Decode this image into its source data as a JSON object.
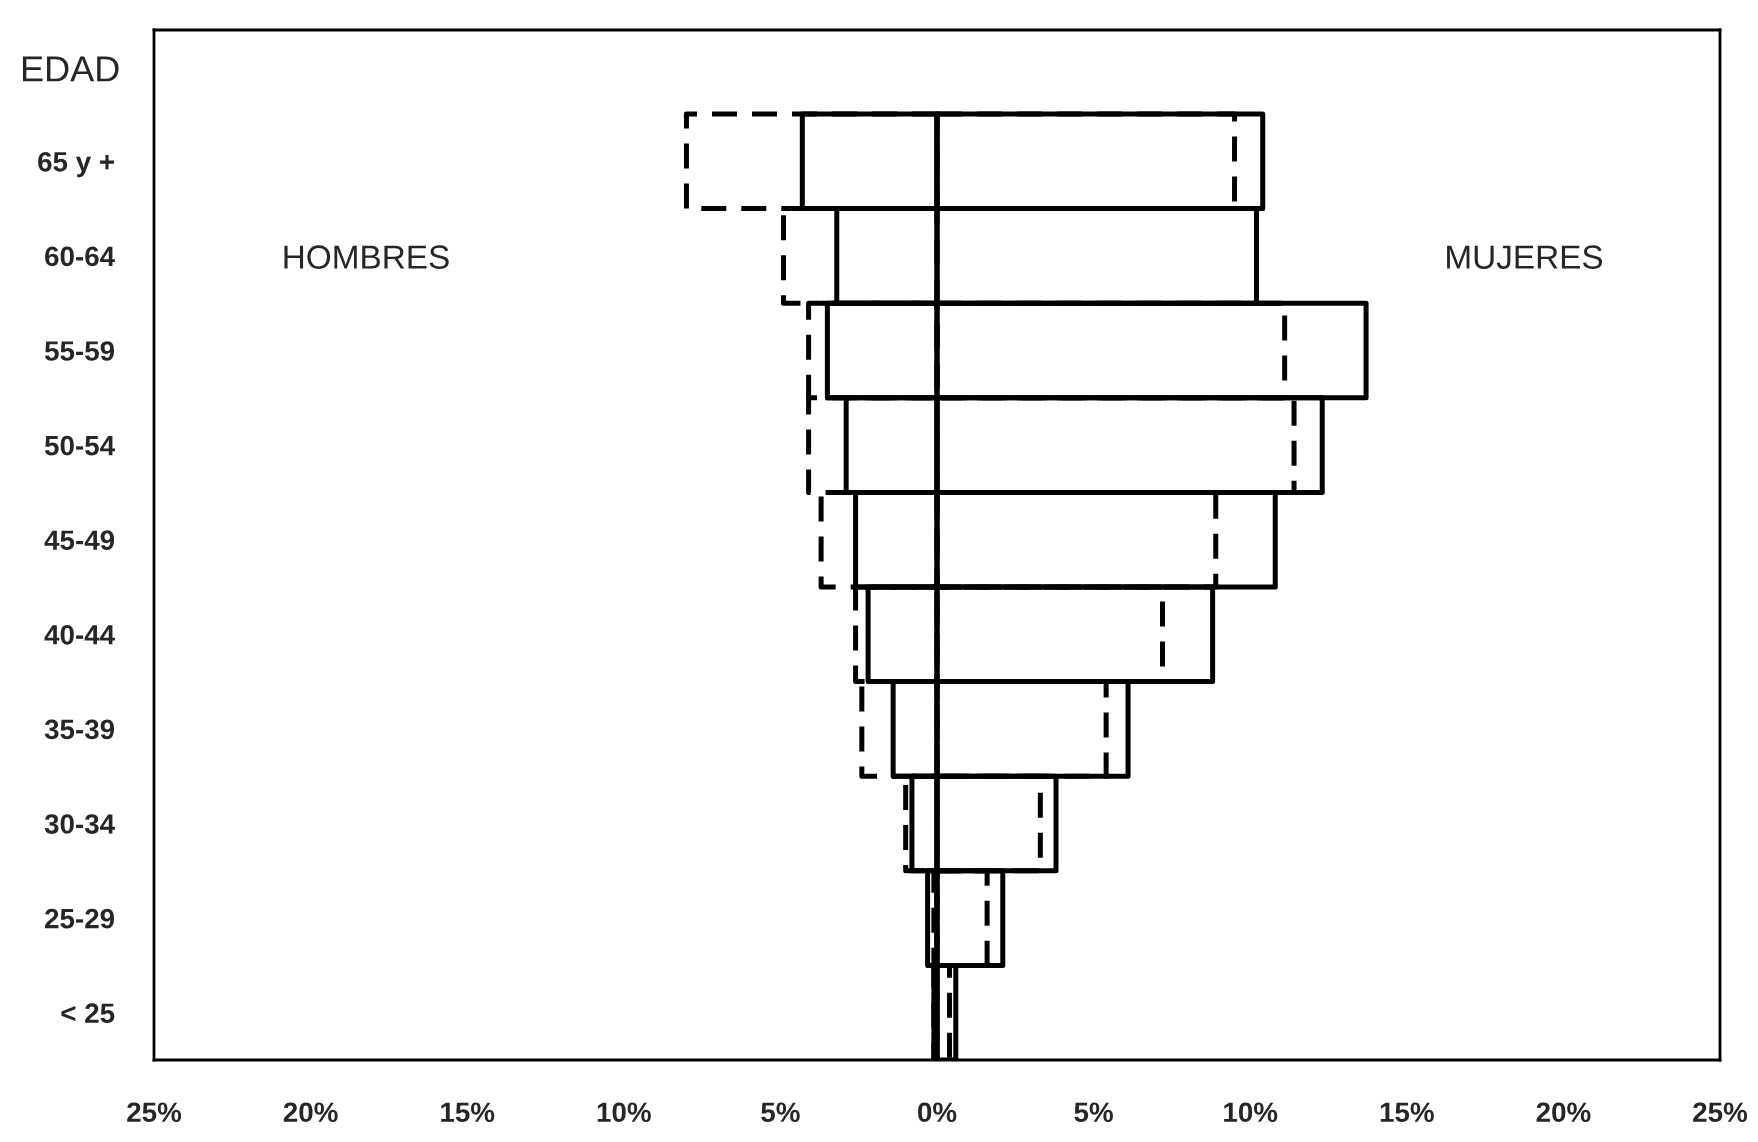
{
  "chart_data": {
    "type": "bar",
    "orientation": "horizontal",
    "ylabel": "EDAD",
    "categories": [
      "65 y +",
      "60-64",
      "55-59",
      "50-54",
      "45-49",
      "40-44",
      "35-39",
      "30-34",
      "25-29",
      "< 25"
    ],
    "series": [
      {
        "color": "#000000",
        "line_style": "dashed",
        "values": [
          -8.0,
          -4.9,
          -4.1,
          -4.1,
          -3.7,
          -2.6,
          -2.4,
          -1.0,
          -0.1,
          -0.1
        ]
      },
      {
        "color": "#000000",
        "line_style": "solid",
        "values": [
          -4.3,
          -3.2,
          -3.5,
          -2.9,
          -2.6,
          -2.2,
          -1.4,
          -0.8,
          -0.3,
          -0.1
        ]
      },
      {
        "color": "#000000",
        "line_style": "dashed",
        "values": [
          9.5,
          null,
          11.1,
          11.4,
          8.9,
          7.2,
          5.4,
          3.3,
          1.6,
          0.4
        ]
      },
      {
        "color": "#000000",
        "line_style": "solid",
        "values": [
          10.4,
          10.2,
          13.7,
          12.3,
          10.8,
          8.8,
          6.1,
          3.8,
          2.1,
          0.6
        ]
      }
    ],
    "xlim": [
      -25,
      25
    ],
    "xticks": [
      {
        "value": -25,
        "label": "25%"
      },
      {
        "value": -20,
        "label": "20%"
      },
      {
        "value": -15,
        "label": "15%"
      },
      {
        "value": -10,
        "label": "10%"
      },
      {
        "value": -5,
        "label": "5%"
      },
      {
        "value": 0,
        "label": "0%"
      },
      {
        "value": 5,
        "label": "5%"
      },
      {
        "value": 10,
        "label": "10%"
      },
      {
        "value": 15,
        "label": "15%"
      },
      {
        "value": 20,
        "label": "20%"
      },
      {
        "value": 25,
        "label": "25%"
      }
    ],
    "annotations": [
      "HOMBRES",
      "MUJERES"
    ],
    "grid": false,
    "legend": false
  }
}
